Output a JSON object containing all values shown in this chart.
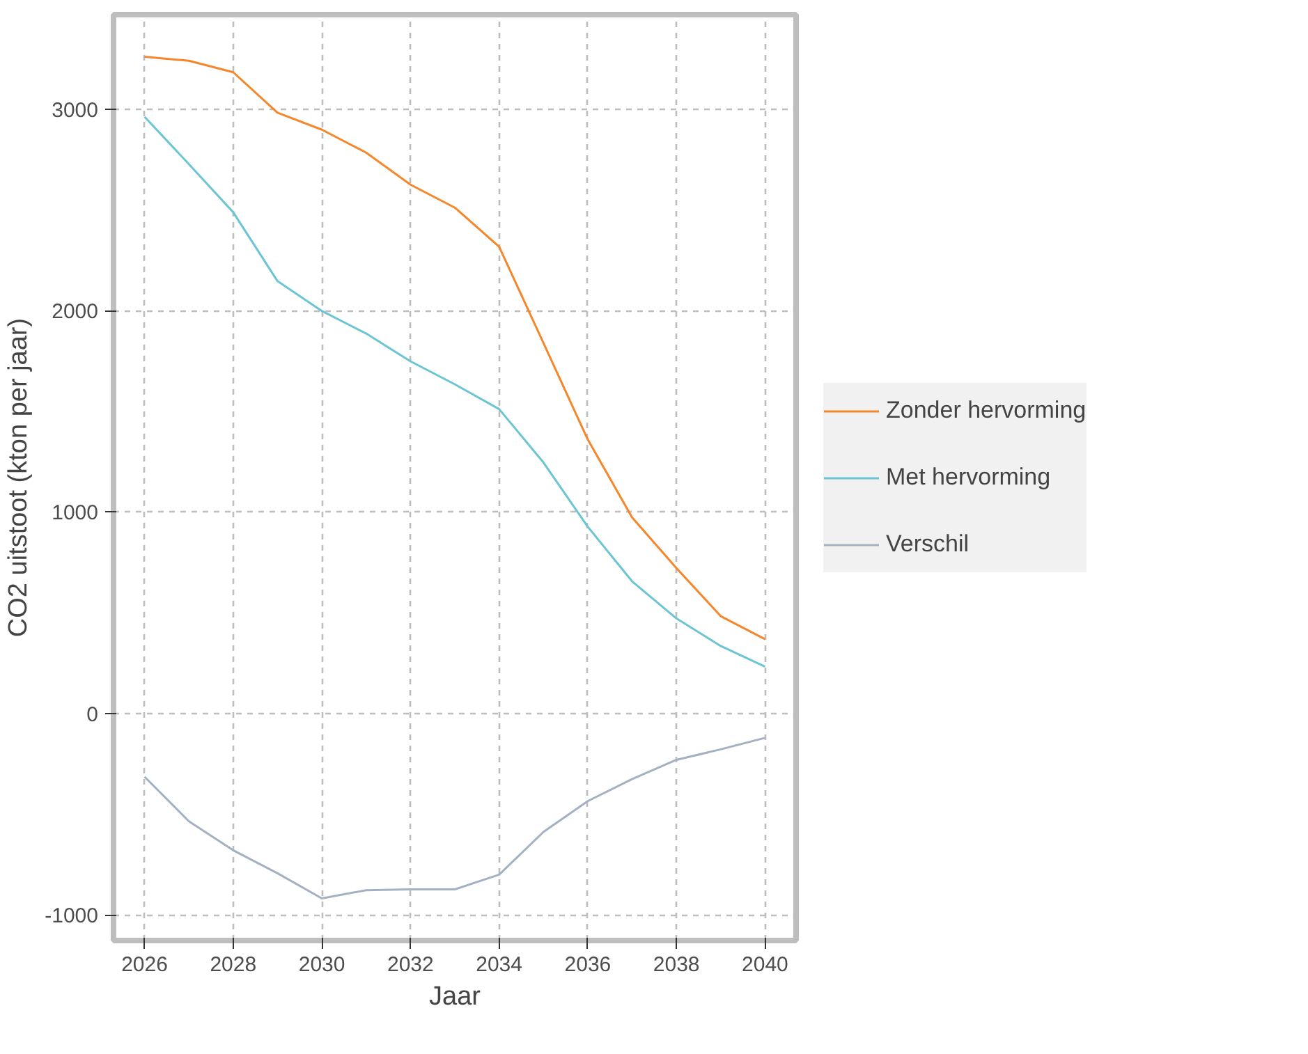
{
  "chart_data": {
    "type": "line",
    "xlabel": "Jaar",
    "ylabel": "CO2 uitstoot (kton per jaar)",
    "x": [
      2026,
      2027,
      2028,
      2029,
      2030,
      2031,
      2032,
      2033,
      2034,
      2035,
      2036,
      2037,
      2038,
      2039,
      2040
    ],
    "series": [
      {
        "name": "Zonder hervorming",
        "color": "#f5862a",
        "values": [
          3260,
          3240,
          3183,
          2982,
          2898,
          2784,
          2625,
          2511,
          2317,
          1839,
          1360,
          973,
          722,
          483,
          369
        ]
      },
      {
        "name": "Met hervorming",
        "color": "#6cc5d3",
        "values": [
          2962,
          2727,
          2488,
          2146,
          1998,
          1886,
          1748,
          1634,
          1511,
          1246,
          927,
          656,
          472,
          335,
          232
        ]
      },
      {
        "name": "Verschil",
        "color": "#a3b1c2",
        "values": [
          -314,
          -535,
          -679,
          -793,
          -918,
          -877,
          -873,
          -873,
          -800,
          -588,
          -435,
          -326,
          -230,
          -178,
          -121
        ]
      }
    ],
    "xlim": [
      2025.3,
      2040.7
    ],
    "ylim": [
      -1127,
      3469
    ],
    "xticks": [
      2026,
      2028,
      2030,
      2032,
      2034,
      2036,
      2038,
      2040
    ],
    "yticks": [
      -1000,
      0,
      1000,
      2000,
      3000
    ],
    "grid": true,
    "legend": "right",
    "line_style": "solid",
    "marker": "none"
  }
}
